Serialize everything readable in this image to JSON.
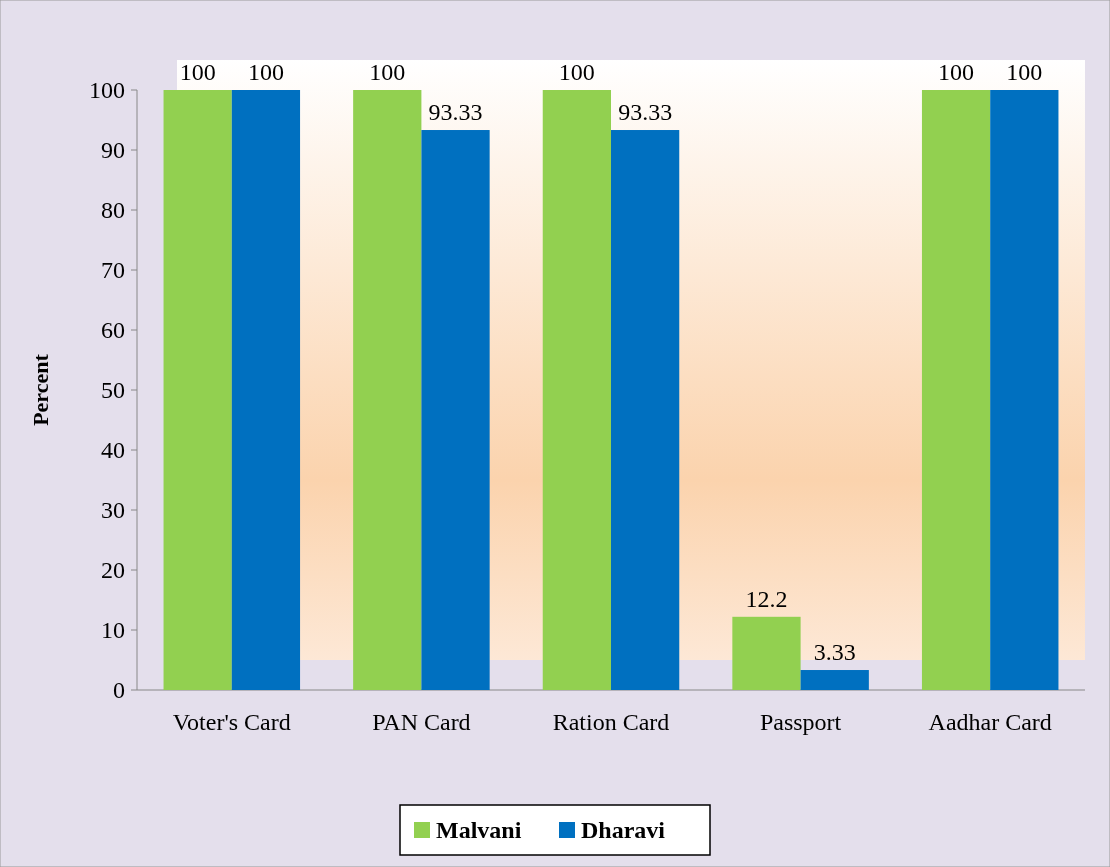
{
  "chart_data": {
    "type": "bar",
    "ylabel": "Percent",
    "categories": [
      "Voter's Card",
      "PAN Card",
      "Ration Card",
      "Passport",
      "Aadhar Card"
    ],
    "series": [
      {
        "name": "Malvani",
        "color": "#92d050",
        "values": [
          100,
          100,
          100,
          12.2,
          100
        ]
      },
      {
        "name": "Dharavi",
        "color": "#0070c0",
        "values": [
          100,
          93.33,
          93.33,
          3.33,
          100
        ]
      }
    ],
    "ylim": [
      0,
      100
    ],
    "yticks": [
      0,
      10,
      20,
      30,
      40,
      50,
      60,
      70,
      80,
      90,
      100
    ],
    "data_labels": true,
    "legend": "bottom",
    "grid": false
  }
}
